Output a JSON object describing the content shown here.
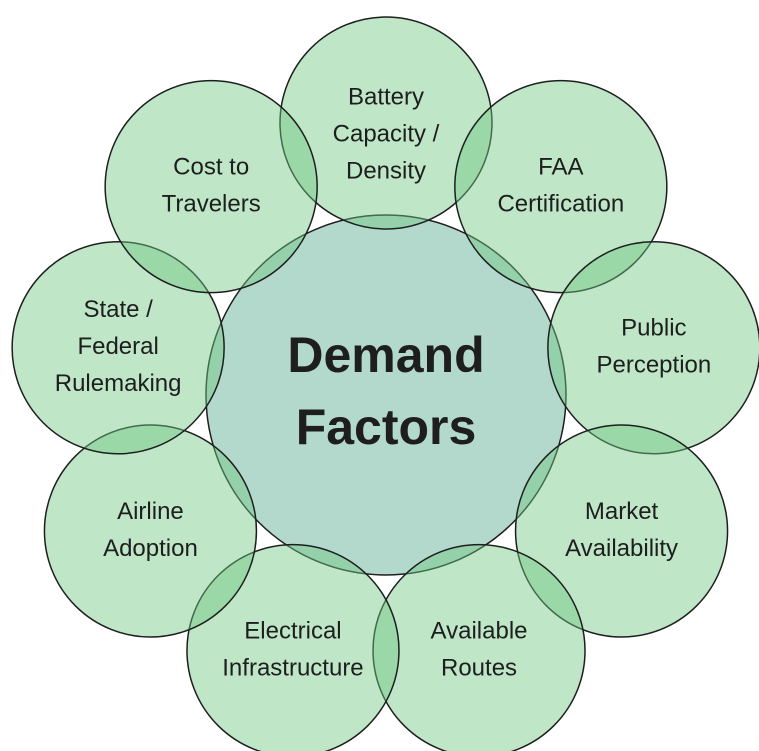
{
  "center": {
    "lines": [
      "Demand",
      "Factors"
    ]
  },
  "nodes": [
    {
      "lines": [
        "Battery",
        "Capacity /",
        "Density"
      ]
    },
    {
      "lines": [
        "FAA",
        "Certification"
      ]
    },
    {
      "lines": [
        "Public",
        "Perception"
      ]
    },
    {
      "lines": [
        "Market",
        "Availability"
      ]
    },
    {
      "lines": [
        "Available",
        "Routes"
      ]
    },
    {
      "lines": [
        "Electrical",
        "Infrastructure"
      ]
    },
    {
      "lines": [
        "Airline",
        "Adoption"
      ]
    },
    {
      "lines": [
        "State /",
        "Federal",
        "Rulemaking"
      ]
    },
    {
      "lines": [
        "Cost to",
        "Travelers"
      ]
    }
  ]
}
